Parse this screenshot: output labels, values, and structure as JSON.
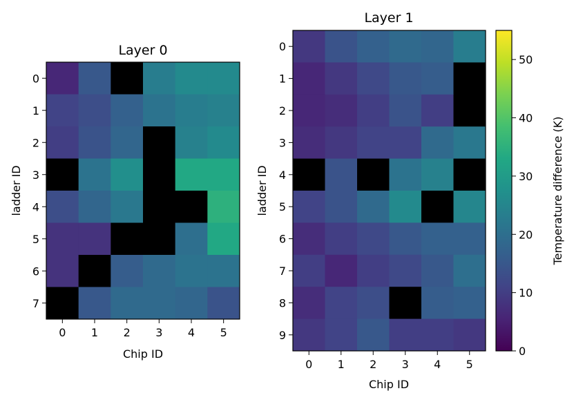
{
  "chart_data": [
    {
      "type": "heatmap",
      "title": "Layer 0",
      "xlabel": "Chip ID",
      "ylabel": "ladder ID",
      "x_ticks": [
        "0",
        "1",
        "2",
        "3",
        "4",
        "5"
      ],
      "y_ticks": [
        "0",
        "1",
        "2",
        "3",
        "4",
        "5",
        "6",
        "7"
      ],
      "missing_color": "#000000",
      "values": [
        [
          6,
          15,
          null,
          23,
          26,
          26
        ],
        [
          11,
          13,
          17,
          21,
          23,
          24
        ],
        [
          10,
          14,
          18,
          null,
          24,
          26
        ],
        [
          null,
          21,
          27,
          null,
          33,
          33
        ],
        [
          13,
          18,
          22,
          null,
          null,
          35
        ],
        [
          8,
          8,
          null,
          null,
          20,
          33
        ],
        [
          8,
          null,
          16,
          19,
          21,
          21
        ],
        [
          null,
          15,
          19,
          19,
          18,
          14
        ]
      ]
    },
    {
      "type": "heatmap",
      "title": "Layer 1",
      "xlabel": "Chip ID",
      "ylabel": "ladder ID",
      "x_ticks": [
        "0",
        "1",
        "2",
        "3",
        "4",
        "5"
      ],
      "y_ticks": [
        "0",
        "1",
        "2",
        "3",
        "4",
        "5",
        "6",
        "7",
        "8",
        "9"
      ],
      "missing_color": "#000000",
      "values": [
        [
          9,
          14,
          17,
          19,
          18,
          23
        ],
        [
          6,
          9,
          12,
          15,
          16,
          null
        ],
        [
          6,
          7,
          10,
          14,
          10,
          null
        ],
        [
          7,
          9,
          11,
          11,
          19,
          22
        ],
        [
          null,
          14,
          null,
          21,
          24,
          null
        ],
        [
          11,
          14,
          19,
          26,
          null,
          25
        ],
        [
          7,
          10,
          12,
          15,
          17,
          17
        ],
        [
          10,
          6,
          10,
          12,
          15,
          20
        ],
        [
          7,
          11,
          13,
          null,
          16,
          17
        ],
        [
          9,
          11,
          15,
          10,
          10,
          9
        ]
      ]
    }
  ],
  "colorbar": {
    "label": "Temperature difference (K)",
    "min": 0,
    "max": 55,
    "ticks": [
      "0",
      "10",
      "20",
      "30",
      "40",
      "50"
    ],
    "colormap": "viridis"
  }
}
